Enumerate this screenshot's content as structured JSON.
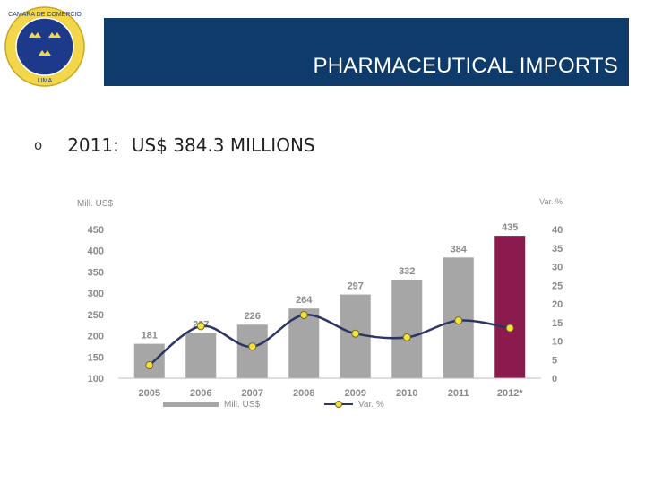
{
  "header": {
    "title": "PHARMACEUTICAL IMPORTS",
    "logo_text_top": "CAMARA DE COMERCIO",
    "logo_text_bottom": "LIMA"
  },
  "bullet": {
    "marker": "o",
    "label": "2011:",
    "value": "US$ 384.3 MILLIONS"
  },
  "colors": {
    "header_bg": "#0f3b6b",
    "bar": "#a6a6a6",
    "bar_highlight": "#8b1a4f",
    "line": "#2b3566",
    "marker": "#f4e23a"
  },
  "chart_data": {
    "type": "bar",
    "categories": [
      "2005",
      "2006",
      "2007",
      "2008",
      "2009",
      "2010",
      "2011",
      "2012*"
    ],
    "ylabel": "Mill. US$",
    "y2label": "Var. %",
    "ylim": [
      100,
      450
    ],
    "y2lim": [
      0,
      40
    ],
    "yticks": [
      100,
      150,
      200,
      250,
      300,
      350,
      400,
      450
    ],
    "y2ticks": [
      0,
      5,
      10,
      15,
      20,
      25,
      30,
      35,
      40
    ],
    "grid": false,
    "legend": "bottom",
    "series": [
      {
        "name": "Mill. US$",
        "kind": "bar",
        "values": [
          181,
          207,
          226,
          264,
          297,
          332,
          384,
          435
        ]
      },
      {
        "name": "Var. %",
        "kind": "line",
        "axis": "right",
        "values": [
          3.5,
          14,
          8.5,
          17,
          12,
          11,
          15.5,
          13.5
        ]
      }
    ],
    "highlight_category": "2012*"
  }
}
